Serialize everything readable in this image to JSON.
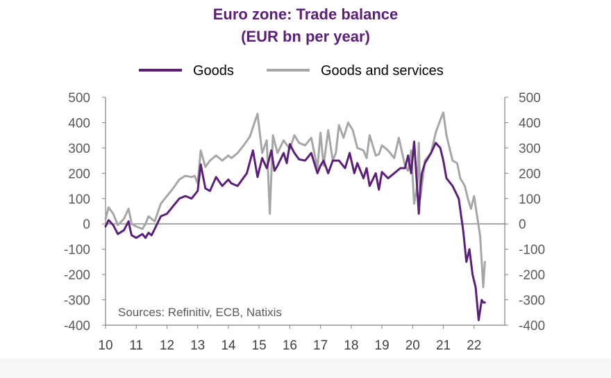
{
  "colors": {
    "goods": "#5b1f7a",
    "goods_and_services": "#a6a6a6",
    "title": "#5b1f7a",
    "axis": "#7f7f7f"
  },
  "chart_data": {
    "type": "line",
    "title": "Euro zone: Trade balance",
    "subtitle": "(EUR bn per year)",
    "xlabel": "",
    "ylabel": "",
    "xlim": [
      10,
      23
    ],
    "ylim": [
      -400,
      500
    ],
    "yticks": [
      "500",
      "400",
      "300",
      "200",
      "100",
      "0",
      "-100",
      "-200",
      "-300",
      "-400"
    ],
    "ytick_values": [
      500,
      400,
      300,
      200,
      100,
      0,
      -100,
      -200,
      -300,
      -400
    ],
    "xticks": [
      "10",
      "11",
      "12",
      "13",
      "14",
      "15",
      "16",
      "17",
      "18",
      "19",
      "20",
      "21",
      "22"
    ],
    "xtick_values": [
      10,
      11,
      12,
      13,
      14,
      15,
      16,
      17,
      18,
      19,
      20,
      21,
      22
    ],
    "legend_position": "top",
    "grid": false,
    "right_axis": true,
    "annotation": "Sources: Refinitiv, ECB, Natixis",
    "series": [
      {
        "name": "Goods",
        "x": [
          10.0,
          10.1,
          10.25,
          10.4,
          10.6,
          10.75,
          10.8,
          10.85,
          11.0,
          11.2,
          11.3,
          11.4,
          11.5,
          11.6,
          11.8,
          12.0,
          12.2,
          12.4,
          12.6,
          12.8,
          12.9,
          13.0,
          13.1,
          13.25,
          13.4,
          13.6,
          13.8,
          14.0,
          14.1,
          14.3,
          14.6,
          14.8,
          14.95,
          15.1,
          15.25,
          15.4,
          15.5,
          15.6,
          15.8,
          15.9,
          16.0,
          16.15,
          16.3,
          16.5,
          16.7,
          16.9,
          17.0,
          17.1,
          17.25,
          17.4,
          17.6,
          17.8,
          17.95,
          18.1,
          18.2,
          18.4,
          18.5,
          18.6,
          18.8,
          18.9,
          19.0,
          19.2,
          19.4,
          19.6,
          19.75,
          19.85,
          19.95,
          20.05,
          20.2,
          20.25,
          20.3,
          20.4,
          20.6,
          20.75,
          20.9,
          21.0,
          21.1,
          21.3,
          21.5,
          21.65,
          21.75,
          21.85,
          21.95,
          22.05,
          22.15,
          22.25,
          22.3,
          22.35
        ],
        "values": [
          -10,
          15,
          -5,
          -40,
          -25,
          10,
          -20,
          -45,
          -55,
          -40,
          -55,
          -35,
          -45,
          -20,
          30,
          40,
          70,
          100,
          110,
          100,
          115,
          130,
          235,
          140,
          130,
          185,
          150,
          175,
          160,
          150,
          200,
          290,
          185,
          260,
          220,
          290,
          210,
          230,
          280,
          240,
          315,
          280,
          255,
          250,
          280,
          200,
          230,
          250,
          200,
          250,
          250,
          220,
          280,
          200,
          240,
          180,
          220,
          150,
          200,
          135,
          205,
          180,
          200,
          220,
          220,
          270,
          200,
          325,
          40,
          145,
          200,
          240,
          280,
          320,
          300,
          250,
          180,
          150,
          100,
          -30,
          -150,
          -100,
          -200,
          -250,
          -380,
          -300,
          -310,
          -310
        ]
      },
      {
        "name": "Goods and services",
        "x": [
          10.0,
          10.1,
          10.25,
          10.4,
          10.6,
          10.75,
          10.8,
          10.85,
          11.0,
          11.2,
          11.3,
          11.4,
          11.6,
          11.8,
          12.0,
          12.2,
          12.4,
          12.6,
          12.8,
          12.9,
          13.0,
          13.1,
          13.25,
          13.4,
          13.6,
          13.8,
          14.0,
          14.1,
          14.3,
          14.5,
          14.7,
          14.95,
          15.1,
          15.25,
          15.35,
          15.45,
          15.6,
          15.8,
          16.0,
          16.15,
          16.3,
          16.5,
          16.7,
          16.9,
          17.0,
          17.1,
          17.25,
          17.4,
          17.5,
          17.6,
          17.75,
          17.9,
          18.05,
          18.2,
          18.4,
          18.5,
          18.6,
          18.8,
          18.9,
          19.0,
          19.2,
          19.4,
          19.55,
          19.75,
          19.85,
          19.95,
          20.05,
          20.15,
          20.2,
          20.25,
          20.4,
          20.6,
          20.75,
          20.9,
          21.0,
          21.1,
          21.3,
          21.45,
          21.55,
          21.7,
          21.8,
          21.9,
          22.0,
          22.1,
          22.2,
          22.3,
          22.35
        ],
        "values": [
          20,
          65,
          40,
          -5,
          20,
          60,
          30,
          0,
          -10,
          -20,
          0,
          30,
          10,
          80,
          110,
          140,
          175,
          190,
          185,
          190,
          160,
          290,
          225,
          250,
          270,
          250,
          270,
          260,
          280,
          310,
          345,
          435,
          280,
          330,
          40,
          350,
          280,
          330,
          295,
          350,
          320,
          310,
          340,
          220,
          360,
          230,
          370,
          250,
          280,
          390,
          340,
          400,
          370,
          300,
          290,
          260,
          350,
          270,
          275,
          310,
          290,
          260,
          340,
          230,
          210,
          290,
          80,
          150,
          320,
          100,
          250,
          280,
          360,
          410,
          440,
          350,
          250,
          240,
          180,
          150,
          100,
          60,
          110,
          30,
          -50,
          -250,
          -150
        ]
      }
    ]
  }
}
